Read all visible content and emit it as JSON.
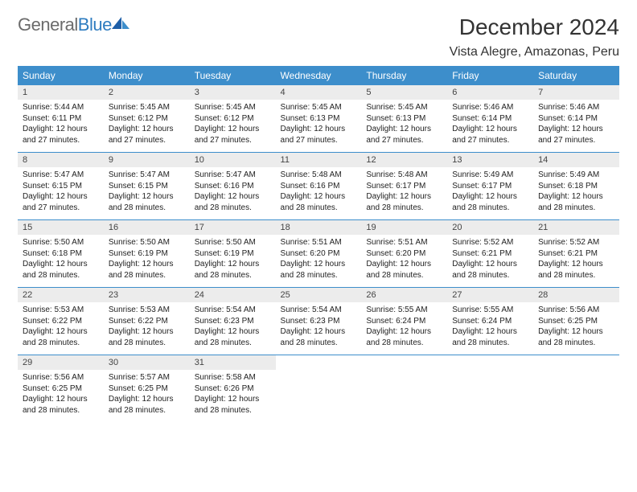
{
  "brand": {
    "text1": "General",
    "text2": "Blue"
  },
  "title": "December 2024",
  "location": "Vista Alegre, Amazonas, Peru",
  "colors": {
    "header_bg": "#3d8ecb",
    "header_text": "#ffffff",
    "daynum_bg": "#ececec",
    "border": "#3d8ecb",
    "body_text": "#222222",
    "brand_gray": "#6b6b6b",
    "brand_blue": "#2e7cc0"
  },
  "dow": [
    "Sunday",
    "Monday",
    "Tuesday",
    "Wednesday",
    "Thursday",
    "Friday",
    "Saturday"
  ],
  "weeks": [
    [
      {
        "n": "1",
        "sr": "5:44 AM",
        "ss": "6:11 PM",
        "dl": "12 hours and 27 minutes."
      },
      {
        "n": "2",
        "sr": "5:45 AM",
        "ss": "6:12 PM",
        "dl": "12 hours and 27 minutes."
      },
      {
        "n": "3",
        "sr": "5:45 AM",
        "ss": "6:12 PM",
        "dl": "12 hours and 27 minutes."
      },
      {
        "n": "4",
        "sr": "5:45 AM",
        "ss": "6:13 PM",
        "dl": "12 hours and 27 minutes."
      },
      {
        "n": "5",
        "sr": "5:45 AM",
        "ss": "6:13 PM",
        "dl": "12 hours and 27 minutes."
      },
      {
        "n": "6",
        "sr": "5:46 AM",
        "ss": "6:14 PM",
        "dl": "12 hours and 27 minutes."
      },
      {
        "n": "7",
        "sr": "5:46 AM",
        "ss": "6:14 PM",
        "dl": "12 hours and 27 minutes."
      }
    ],
    [
      {
        "n": "8",
        "sr": "5:47 AM",
        "ss": "6:15 PM",
        "dl": "12 hours and 27 minutes."
      },
      {
        "n": "9",
        "sr": "5:47 AM",
        "ss": "6:15 PM",
        "dl": "12 hours and 28 minutes."
      },
      {
        "n": "10",
        "sr": "5:47 AM",
        "ss": "6:16 PM",
        "dl": "12 hours and 28 minutes."
      },
      {
        "n": "11",
        "sr": "5:48 AM",
        "ss": "6:16 PM",
        "dl": "12 hours and 28 minutes."
      },
      {
        "n": "12",
        "sr": "5:48 AM",
        "ss": "6:17 PM",
        "dl": "12 hours and 28 minutes."
      },
      {
        "n": "13",
        "sr": "5:49 AM",
        "ss": "6:17 PM",
        "dl": "12 hours and 28 minutes."
      },
      {
        "n": "14",
        "sr": "5:49 AM",
        "ss": "6:18 PM",
        "dl": "12 hours and 28 minutes."
      }
    ],
    [
      {
        "n": "15",
        "sr": "5:50 AM",
        "ss": "6:18 PM",
        "dl": "12 hours and 28 minutes."
      },
      {
        "n": "16",
        "sr": "5:50 AM",
        "ss": "6:19 PM",
        "dl": "12 hours and 28 minutes."
      },
      {
        "n": "17",
        "sr": "5:50 AM",
        "ss": "6:19 PM",
        "dl": "12 hours and 28 minutes."
      },
      {
        "n": "18",
        "sr": "5:51 AM",
        "ss": "6:20 PM",
        "dl": "12 hours and 28 minutes."
      },
      {
        "n": "19",
        "sr": "5:51 AM",
        "ss": "6:20 PM",
        "dl": "12 hours and 28 minutes."
      },
      {
        "n": "20",
        "sr": "5:52 AM",
        "ss": "6:21 PM",
        "dl": "12 hours and 28 minutes."
      },
      {
        "n": "21",
        "sr": "5:52 AM",
        "ss": "6:21 PM",
        "dl": "12 hours and 28 minutes."
      }
    ],
    [
      {
        "n": "22",
        "sr": "5:53 AM",
        "ss": "6:22 PM",
        "dl": "12 hours and 28 minutes."
      },
      {
        "n": "23",
        "sr": "5:53 AM",
        "ss": "6:22 PM",
        "dl": "12 hours and 28 minutes."
      },
      {
        "n": "24",
        "sr": "5:54 AM",
        "ss": "6:23 PM",
        "dl": "12 hours and 28 minutes."
      },
      {
        "n": "25",
        "sr": "5:54 AM",
        "ss": "6:23 PM",
        "dl": "12 hours and 28 minutes."
      },
      {
        "n": "26",
        "sr": "5:55 AM",
        "ss": "6:24 PM",
        "dl": "12 hours and 28 minutes."
      },
      {
        "n": "27",
        "sr": "5:55 AM",
        "ss": "6:24 PM",
        "dl": "12 hours and 28 minutes."
      },
      {
        "n": "28",
        "sr": "5:56 AM",
        "ss": "6:25 PM",
        "dl": "12 hours and 28 minutes."
      }
    ],
    [
      {
        "n": "29",
        "sr": "5:56 AM",
        "ss": "6:25 PM",
        "dl": "12 hours and 28 minutes."
      },
      {
        "n": "30",
        "sr": "5:57 AM",
        "ss": "6:25 PM",
        "dl": "12 hours and 28 minutes."
      },
      {
        "n": "31",
        "sr": "5:58 AM",
        "ss": "6:26 PM",
        "dl": "12 hours and 28 minutes."
      },
      null,
      null,
      null,
      null
    ]
  ],
  "labels": {
    "sunrise": "Sunrise:",
    "sunset": "Sunset:",
    "daylight": "Daylight:"
  }
}
